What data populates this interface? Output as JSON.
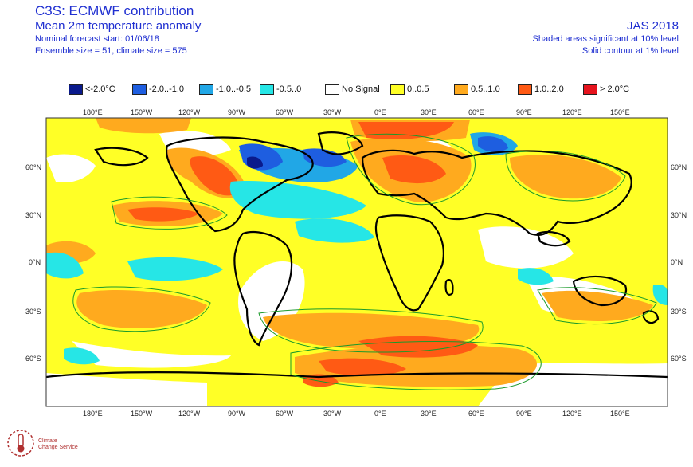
{
  "header": {
    "title": "C3S: ECMWF contribution",
    "subtitle": "Mean 2m temperature anomaly",
    "forecast_start": "Nominal forecast start: 01/06/18",
    "ensemble": "Ensemble size = 51, climate size = 575",
    "season": "JAS 2018",
    "note1": "Shaded areas significant at 10% level",
    "note2": "Solid contour at 1% level"
  },
  "legend": [
    {
      "label": "<-2.0°C",
      "color": "#0a1a8c"
    },
    {
      "label": "-2.0..-1.0",
      "color": "#1e5ee0"
    },
    {
      "label": "-1.0..-0.5",
      "color": "#21a7e6"
    },
    {
      "label": "-0.5..0",
      "color": "#26e6e6"
    },
    {
      "label": "No Signal",
      "color": "#ffffff"
    },
    {
      "label": "0..0.5",
      "color": "#ffff26"
    },
    {
      "label": "0.5..1.0",
      "color": "#ffaa1e"
    },
    {
      "label": "1.0..2.0",
      "color": "#ff5a14"
    },
    {
      "label": "> 2.0°C",
      "color": "#e6141e"
    }
  ],
  "axes": {
    "lon_ticks": [
      "180°E",
      "150°W",
      "120°W",
      "90°W",
      "60°W",
      "30°W",
      "0°E",
      "30°E",
      "60°E",
      "90°E",
      "120°E",
      "150°E"
    ],
    "lat_ticks": [
      "60°N",
      "30°N",
      "0°N",
      "30°S",
      "60°S"
    ]
  },
  "logo": {
    "line1": "Climate",
    "line2": "Change Service"
  }
}
